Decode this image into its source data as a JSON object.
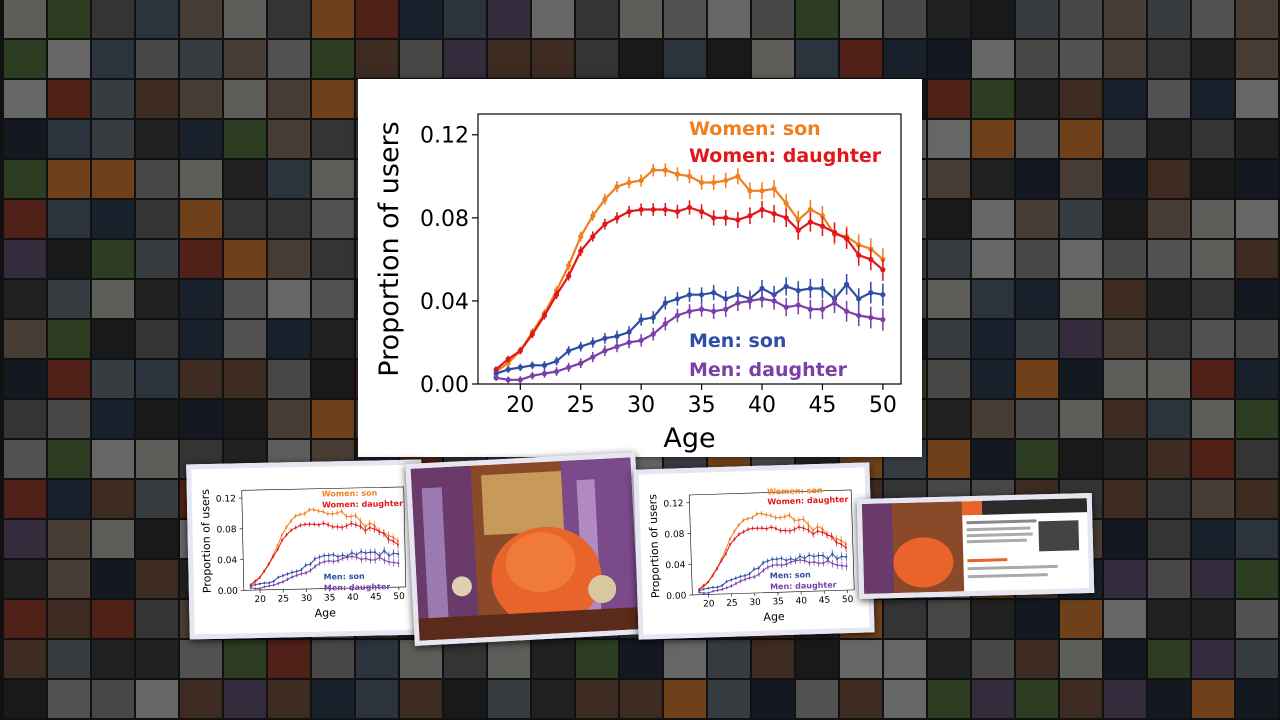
{
  "chart_data": {
    "type": "line",
    "xlabel": "Age",
    "ylabel": "Proportion of users",
    "xlim": [
      16.5,
      51.5
    ],
    "ylim": [
      0,
      0.13
    ],
    "x_ticks": [
      "20",
      "25",
      "30",
      "35",
      "40",
      "45",
      "50"
    ],
    "y_ticks": [
      "0.00",
      "0.04",
      "0.08",
      "0.12"
    ],
    "x_tick_values": [
      20,
      25,
      30,
      35,
      40,
      45,
      50
    ],
    "y_tick_values": [
      0,
      0.04,
      0.08,
      0.12
    ],
    "grid": false,
    "legend_position": "top-right",
    "x": [
      18,
      19,
      20,
      21,
      22,
      23,
      24,
      25,
      26,
      27,
      28,
      29,
      30,
      31,
      32,
      33,
      34,
      35,
      36,
      37,
      38,
      39,
      40,
      41,
      42,
      43,
      44,
      45,
      46,
      47,
      48,
      49,
      50
    ],
    "series": [
      {
        "name": "Women: son",
        "color": "#f07f1e",
        "values": [
          0.006,
          0.01,
          0.016,
          0.025,
          0.034,
          0.045,
          0.057,
          0.071,
          0.081,
          0.089,
          0.095,
          0.097,
          0.098,
          0.103,
          0.103,
          0.101,
          0.1,
          0.097,
          0.097,
          0.098,
          0.1,
          0.093,
          0.093,
          0.094,
          0.087,
          0.079,
          0.084,
          0.081,
          0.072,
          0.071,
          0.067,
          0.065,
          0.06
        ]
      },
      {
        "name": "Women: daughter",
        "color": "#e1171c",
        "values": [
          0.007,
          0.012,
          0.016,
          0.024,
          0.033,
          0.043,
          0.052,
          0.064,
          0.071,
          0.077,
          0.08,
          0.083,
          0.084,
          0.084,
          0.084,
          0.083,
          0.085,
          0.083,
          0.08,
          0.08,
          0.079,
          0.081,
          0.084,
          0.082,
          0.08,
          0.074,
          0.078,
          0.076,
          0.073,
          0.07,
          0.062,
          0.06,
          0.055
        ]
      },
      {
        "name": "Men: son",
        "color": "#2e4ea6",
        "values": [
          0.005,
          0.007,
          0.008,
          0.009,
          0.009,
          0.011,
          0.016,
          0.018,
          0.02,
          0.022,
          0.023,
          0.025,
          0.031,
          0.032,
          0.039,
          0.041,
          0.043,
          0.043,
          0.044,
          0.041,
          0.043,
          0.041,
          0.046,
          0.043,
          0.047,
          0.045,
          0.046,
          0.046,
          0.041,
          0.048,
          0.041,
          0.044,
          0.043
        ]
      },
      {
        "name": "Men: daughter",
        "color": "#7b3fa8",
        "values": [
          0.003,
          0.002,
          0.002,
          0.004,
          0.005,
          0.006,
          0.008,
          0.01,
          0.013,
          0.016,
          0.018,
          0.02,
          0.021,
          0.024,
          0.029,
          0.033,
          0.035,
          0.036,
          0.035,
          0.036,
          0.039,
          0.04,
          0.041,
          0.04,
          0.037,
          0.038,
          0.036,
          0.036,
          0.039,
          0.035,
          0.033,
          0.032,
          0.031
        ]
      }
    ]
  },
  "colors": {
    "background": "#1e1e1e",
    "mosaic_tones": [
      "#3a3a3a",
      "#5a5a5a",
      "#7a7a78",
      "#8c8c8c",
      "#4a5a6a",
      "#6a4a3a",
      "#2a3a4a",
      "#7a6a5a",
      "#a0a09a",
      "#4c6a3c",
      "#8a3a2a",
      "#b0b0b0",
      "#222a3a",
      "#5a4a6a",
      "#c07030",
      "#2c2c2c",
      "#606870"
    ]
  }
}
